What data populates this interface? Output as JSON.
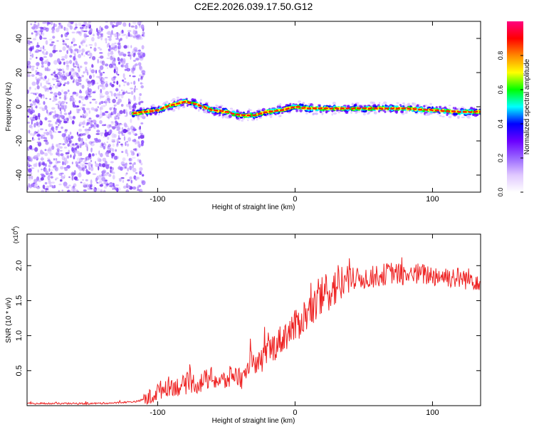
{
  "figure": {
    "title": "C2E2.2026.039.17.50.G12"
  },
  "chart_data": [
    {
      "type": "heatmap",
      "name": "spectrogram",
      "title": "C2E2.2026.039.17.50.G12",
      "xlabel": "Height of straight line (km)",
      "ylabel": "Frequency (Hz)",
      "xlim": [
        -195,
        135
      ],
      "ylim": [
        -50,
        50
      ],
      "xticks": [
        -100,
        0,
        100
      ],
      "yticks": [
        -40,
        -20,
        0,
        20,
        40
      ],
      "colorbar": {
        "label": "Normalized spectral amplitude",
        "range": [
          0,
          1
        ],
        "ticks": [
          "0.0",
          "0.2",
          "0.4",
          "0.6",
          "0.8"
        ],
        "colors": [
          "#ffffff",
          "#e0c8ff",
          "#9966ff",
          "#6a00ff",
          "#0000ff",
          "#00ffff",
          "#00ff00",
          "#ffff00",
          "#ff8800",
          "#ff0000",
          "#ff0080"
        ]
      },
      "noise_region_x": [
        -195,
        -110
      ],
      "ridge_x": [
        -118,
        -110,
        -100,
        -90,
        -80,
        -70,
        -60,
        -50,
        -40,
        -30,
        -20,
        -10,
        0,
        10,
        20,
        40,
        60,
        80,
        100,
        120,
        135
      ],
      "ridge_freq": [
        -4,
        -3,
        -2,
        1,
        3,
        1,
        -2,
        -3,
        -5,
        -5,
        -3,
        -2,
        0,
        -1,
        -1,
        -1,
        -1,
        -1,
        -2,
        -3,
        -3
      ]
    },
    {
      "type": "line",
      "name": "snr",
      "title": "",
      "xlabel": "Height of straight line (km)",
      "ylabel": "SNR (10 * v/v)",
      "scale_label": "(x10",
      "scale_exponent": "4",
      "xlim": [
        -195,
        135
      ],
      "ylim": [
        0,
        2.45
      ],
      "xticks": [
        -100,
        0,
        100
      ],
      "yticks": [
        "0.5",
        "1.0",
        "1.5",
        "2.0"
      ],
      "color": "#ee2222",
      "series": [
        {
          "name": "SNR",
          "x": [
            -195,
            -170,
            -150,
            -130,
            -115,
            -105,
            -100,
            -95,
            -90,
            -85,
            -80,
            -75,
            -70,
            -65,
            -60,
            -55,
            -50,
            -45,
            -40,
            -35,
            -32,
            -30,
            -25,
            -20,
            -15,
            -10,
            -5,
            0,
            5,
            10,
            15,
            20,
            25,
            30,
            35,
            40,
            50,
            60,
            70,
            80,
            90,
            100,
            110,
            120,
            135
          ],
          "y": [
            0.03,
            0.03,
            0.03,
            0.04,
            0.06,
            0.12,
            0.2,
            0.26,
            0.29,
            0.27,
            0.3,
            0.33,
            0.31,
            0.37,
            0.4,
            0.34,
            0.36,
            0.45,
            0.4,
            0.38,
            0.9,
            0.5,
            0.62,
            0.78,
            0.85,
            0.95,
            1.05,
            1.12,
            1.25,
            1.33,
            1.42,
            1.55,
            1.65,
            1.72,
            1.76,
            1.8,
            1.82,
            1.85,
            1.9,
            1.86,
            1.88,
            1.86,
            1.85,
            1.82,
            1.8
          ]
        }
      ]
    }
  ]
}
